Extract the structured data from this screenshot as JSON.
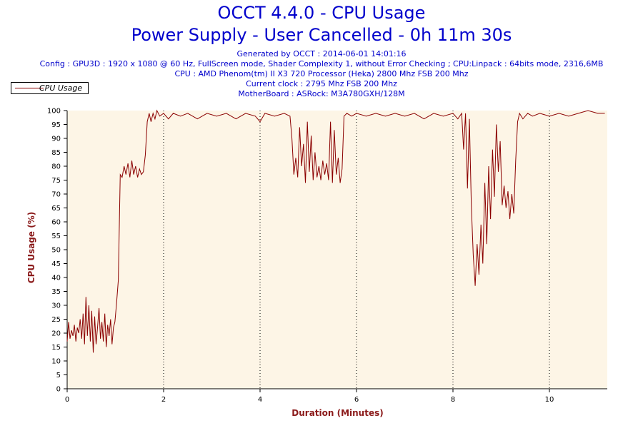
{
  "chart_data": {
    "type": "line",
    "title": "OCCT 4.4.0 - CPU Usage",
    "subtitle": "Power Supply - User Cancelled - 0h 11m 30s",
    "info_lines": [
      "Generated by OCCT : 2014-06-01 14:01:16",
      "Config : GPU3D : 1920 x 1080 @ 60 Hz, FullScreen mode, Shader Complexity 1, without Error Checking ; CPU:Linpack : 64bits mode, 2316,6MB",
      "CPU : AMD Phenom(tm) II X3 720 Processor (Heka) 2800 Mhz FSB 200 Mhz",
      "Current clock : 2795 Mhz FSB 200 Mhz",
      "MotherBoard : ASRock: M3A780GXH/128M"
    ],
    "xlabel": "Duration (Minutes)",
    "ylabel": "CPU Usage (%)",
    "xlim": [
      0,
      11.2
    ],
    "ylim": [
      0,
      100
    ],
    "x_ticks": [
      0,
      2,
      4,
      6,
      8,
      10
    ],
    "y_ticks": [
      0,
      5,
      10,
      15,
      20,
      25,
      30,
      35,
      40,
      45,
      50,
      55,
      60,
      65,
      70,
      75,
      80,
      85,
      90,
      95,
      100
    ],
    "grid": "vertical-dotted",
    "legend": {
      "position": "top-left",
      "entries": [
        "CPU Usage"
      ]
    },
    "colors": {
      "line": "#8b0000",
      "plot_bg": "#fdf5e6",
      "text": "#0000cc",
      "axis_label": "#8b1a1a"
    },
    "series": [
      {
        "name": "CPU Usage",
        "points": [
          [
            0.0,
            17
          ],
          [
            0.03,
            24
          ],
          [
            0.06,
            18
          ],
          [
            0.09,
            21
          ],
          [
            0.12,
            19
          ],
          [
            0.15,
            23
          ],
          [
            0.18,
            17
          ],
          [
            0.21,
            22
          ],
          [
            0.24,
            20
          ],
          [
            0.27,
            25
          ],
          [
            0.3,
            18
          ],
          [
            0.33,
            27
          ],
          [
            0.36,
            16
          ],
          [
            0.39,
            33
          ],
          [
            0.42,
            19
          ],
          [
            0.45,
            30
          ],
          [
            0.48,
            17
          ],
          [
            0.51,
            28
          ],
          [
            0.54,
            13
          ],
          [
            0.57,
            26
          ],
          [
            0.6,
            16
          ],
          [
            0.63,
            22
          ],
          [
            0.66,
            29
          ],
          [
            0.69,
            18
          ],
          [
            0.72,
            24
          ],
          [
            0.75,
            17
          ],
          [
            0.78,
            27
          ],
          [
            0.81,
            15
          ],
          [
            0.84,
            23
          ],
          [
            0.87,
            19
          ],
          [
            0.9,
            25
          ],
          [
            0.93,
            16
          ],
          [
            0.96,
            22
          ],
          [
            0.99,
            24
          ],
          [
            1.02,
            30
          ],
          [
            1.06,
            39
          ],
          [
            1.1,
            77
          ],
          [
            1.14,
            76
          ],
          [
            1.18,
            80
          ],
          [
            1.22,
            77
          ],
          [
            1.26,
            81
          ],
          [
            1.3,
            76
          ],
          [
            1.34,
            82
          ],
          [
            1.38,
            77
          ],
          [
            1.42,
            80
          ],
          [
            1.46,
            76
          ],
          [
            1.5,
            79
          ],
          [
            1.54,
            77
          ],
          [
            1.58,
            78
          ],
          [
            1.62,
            84
          ],
          [
            1.66,
            96
          ],
          [
            1.7,
            99
          ],
          [
            1.74,
            96
          ],
          [
            1.78,
            99
          ],
          [
            1.82,
            97
          ],
          [
            1.86,
            100
          ],
          [
            1.92,
            98
          ],
          [
            2.0,
            99
          ],
          [
            2.1,
            97
          ],
          [
            2.2,
            99
          ],
          [
            2.35,
            98
          ],
          [
            2.5,
            99
          ],
          [
            2.7,
            97
          ],
          [
            2.9,
            99
          ],
          [
            3.1,
            98
          ],
          [
            3.3,
            99
          ],
          [
            3.5,
            97
          ],
          [
            3.7,
            99
          ],
          [
            3.9,
            98
          ],
          [
            4.0,
            96
          ],
          [
            4.1,
            99
          ],
          [
            4.3,
            98
          ],
          [
            4.5,
            99
          ],
          [
            4.62,
            98
          ],
          [
            4.66,
            90
          ],
          [
            4.7,
            77
          ],
          [
            4.74,
            83
          ],
          [
            4.78,
            76
          ],
          [
            4.82,
            94
          ],
          [
            4.86,
            80
          ],
          [
            4.9,
            88
          ],
          [
            4.94,
            74
          ],
          [
            4.98,
            96
          ],
          [
            5.02,
            78
          ],
          [
            5.06,
            91
          ],
          [
            5.1,
            75
          ],
          [
            5.14,
            85
          ],
          [
            5.18,
            76
          ],
          [
            5.22,
            80
          ],
          [
            5.26,
            75
          ],
          [
            5.3,
            82
          ],
          [
            5.34,
            77
          ],
          [
            5.38,
            81
          ],
          [
            5.42,
            75
          ],
          [
            5.46,
            96
          ],
          [
            5.5,
            74
          ],
          [
            5.54,
            93
          ],
          [
            5.58,
            77
          ],
          [
            5.62,
            83
          ],
          [
            5.66,
            74
          ],
          [
            5.7,
            79
          ],
          [
            5.74,
            98
          ],
          [
            5.8,
            99
          ],
          [
            5.9,
            98
          ],
          [
            6.0,
            99
          ],
          [
            6.2,
            98
          ],
          [
            6.4,
            99
          ],
          [
            6.6,
            98
          ],
          [
            6.8,
            99
          ],
          [
            7.0,
            98
          ],
          [
            7.2,
            99
          ],
          [
            7.4,
            97
          ],
          [
            7.6,
            99
          ],
          [
            7.8,
            98
          ],
          [
            8.0,
            99
          ],
          [
            8.1,
            97
          ],
          [
            8.18,
            99
          ],
          [
            8.22,
            86
          ],
          [
            8.26,
            99
          ],
          [
            8.3,
            72
          ],
          [
            8.34,
            97
          ],
          [
            8.38,
            66
          ],
          [
            8.42,
            48
          ],
          [
            8.46,
            37
          ],
          [
            8.5,
            52
          ],
          [
            8.54,
            41
          ],
          [
            8.58,
            59
          ],
          [
            8.62,
            45
          ],
          [
            8.66,
            74
          ],
          [
            8.7,
            52
          ],
          [
            8.74,
            80
          ],
          [
            8.78,
            61
          ],
          [
            8.82,
            86
          ],
          [
            8.86,
            69
          ],
          [
            8.9,
            95
          ],
          [
            8.94,
            78
          ],
          [
            8.98,
            89
          ],
          [
            9.02,
            66
          ],
          [
            9.06,
            73
          ],
          [
            9.1,
            65
          ],
          [
            9.14,
            71
          ],
          [
            9.18,
            61
          ],
          [
            9.22,
            70
          ],
          [
            9.26,
            63
          ],
          [
            9.3,
            82
          ],
          [
            9.34,
            96
          ],
          [
            9.38,
            99
          ],
          [
            9.45,
            97
          ],
          [
            9.55,
            99
          ],
          [
            9.65,
            98
          ],
          [
            9.8,
            99
          ],
          [
            10.0,
            98
          ],
          [
            10.2,
            99
          ],
          [
            10.4,
            98
          ],
          [
            10.6,
            99
          ],
          [
            10.8,
            100
          ],
          [
            11.0,
            99
          ],
          [
            11.15,
            99
          ]
        ]
      }
    ]
  }
}
